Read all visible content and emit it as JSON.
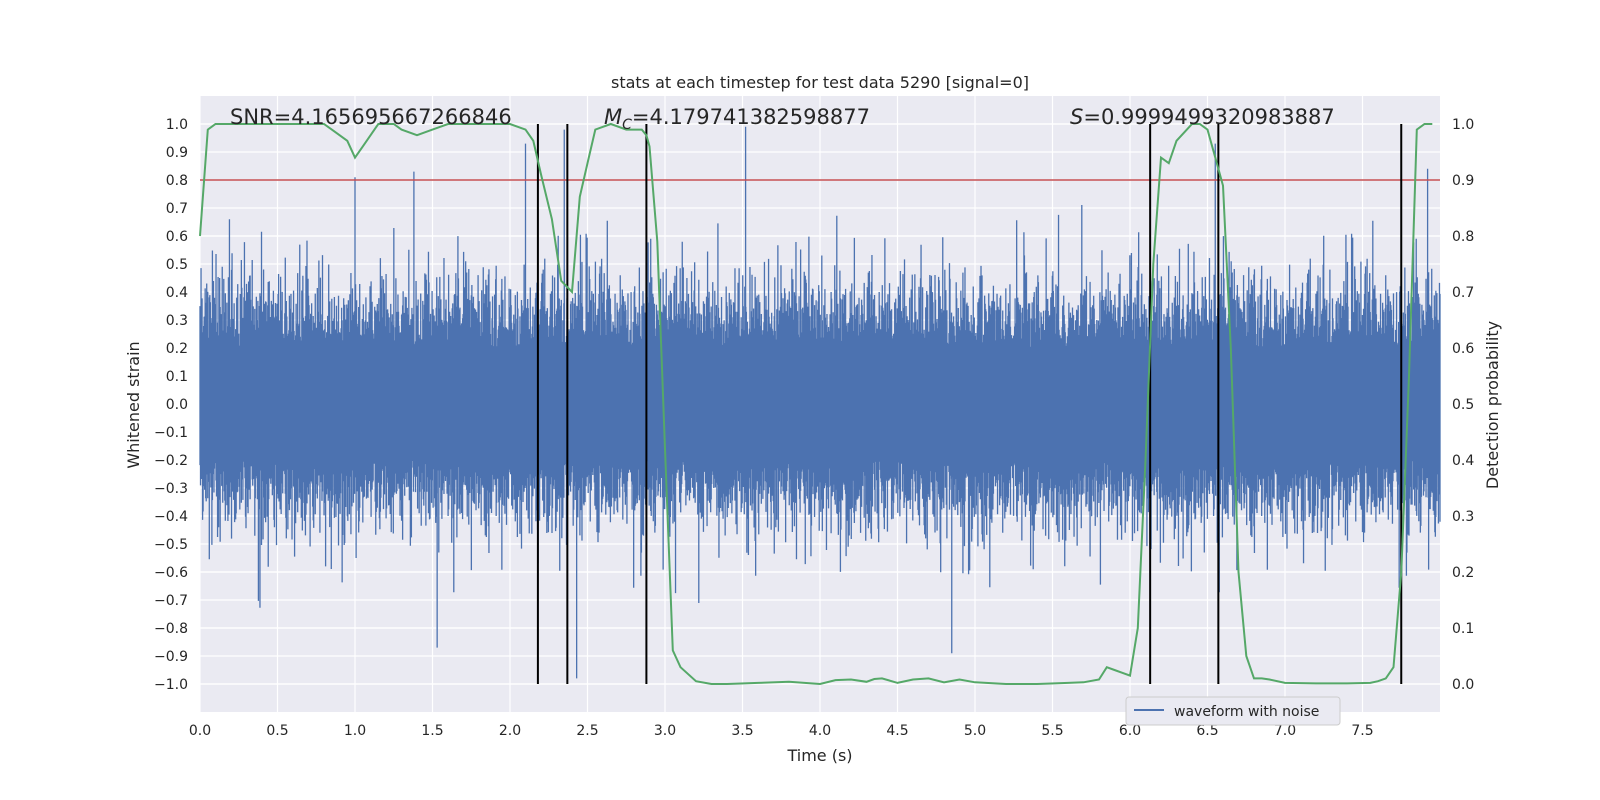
{
  "chart_data": {
    "type": "line",
    "title": "stats at each timestep for test data 5290 [signal=0]",
    "xlabel": "Time (s)",
    "ylabel": "Whitened strain",
    "y2label": "Detection probability",
    "xlim": [
      0.0,
      8.0
    ],
    "ylim": [
      -1.1,
      1.1
    ],
    "y2lim": [
      -0.05,
      1.05
    ],
    "xticks": [
      "0.0",
      "0.5",
      "1.0",
      "1.5",
      "2.0",
      "2.5",
      "3.0",
      "3.5",
      "4.0",
      "4.5",
      "5.0",
      "5.5",
      "6.0",
      "6.5",
      "7.0",
      "7.5"
    ],
    "xtick_values": [
      0.0,
      0.5,
      1.0,
      1.5,
      2.0,
      2.5,
      3.0,
      3.5,
      4.0,
      4.5,
      5.0,
      5.5,
      6.0,
      6.5,
      7.0,
      7.5
    ],
    "yticks": [
      "1.0",
      "0.9",
      "0.8",
      "0.7",
      "0.6",
      "0.5",
      "0.4",
      "0.3",
      "0.2",
      "0.1",
      "0.0",
      "−0.1",
      "−0.2",
      "−0.3",
      "−0.4",
      "−0.5",
      "−0.6",
      "−0.7",
      "−0.8",
      "−0.9",
      "−1.0"
    ],
    "ytick_values": [
      1.0,
      0.9,
      0.8,
      0.7,
      0.6,
      0.5,
      0.4,
      0.3,
      0.2,
      0.1,
      0.0,
      -0.1,
      -0.2,
      -0.3,
      -0.4,
      -0.5,
      -0.6,
      -0.7,
      -0.8,
      -0.9,
      -1.0
    ],
    "y2ticks": [
      "1.0",
      "0.9",
      "0.8",
      "0.7",
      "0.6",
      "0.5",
      "0.4",
      "0.3",
      "0.2",
      "0.1",
      "0.0"
    ],
    "y2tick_values": [
      1.0,
      0.9,
      0.8,
      0.7,
      0.6,
      0.5,
      0.4,
      0.3,
      0.2,
      0.1,
      0.0
    ],
    "annotations": {
      "snr": "SNR=4.165695667266846",
      "mc_symbol": "M",
      "mc_sub": "C",
      "mc_value": "=4.179741382598877",
      "s_symbol": "S",
      "s_value": "=0.9999499320983887"
    },
    "legend": {
      "label": "waveform with noise",
      "location": "lower-right"
    },
    "threshold": {
      "value": 0.9,
      "axis": "y2",
      "color": "#c44e52"
    },
    "vertical_lines": [
      2.18,
      2.37,
      2.88,
      6.13,
      6.57,
      7.75
    ],
    "series": [
      {
        "name": "waveform with noise",
        "color": "#4c72b0",
        "envelope_note": "dense noise series; typical amplitude ±0.4, spikes to about ±0.8",
        "peaks": [
          {
            "x": 0.19,
            "y": 0.66
          },
          {
            "x": 1.0,
            "y": 0.81
          },
          {
            "x": 1.38,
            "y": 0.83
          },
          {
            "x": 2.1,
            "y": 0.93
          },
          {
            "x": 2.35,
            "y": 0.98
          },
          {
            "x": 2.88,
            "y": -0.82
          },
          {
            "x": 3.52,
            "y": 0.99
          },
          {
            "x": 1.53,
            "y": -0.87
          },
          {
            "x": 4.85,
            "y": -0.89
          },
          {
            "x": 6.55,
            "y": 0.93
          },
          {
            "x": 7.92,
            "y": 0.84
          },
          {
            "x": 2.43,
            "y": -0.98
          }
        ]
      },
      {
        "name": "detection probability",
        "axis": "y2",
        "color": "#55a868",
        "x": [
          0.0,
          0.05,
          0.1,
          0.2,
          0.4,
          0.6,
          0.8,
          0.85,
          0.95,
          1.0,
          1.05,
          1.15,
          1.25,
          1.3,
          1.4,
          1.5,
          1.6,
          1.8,
          2.0,
          2.1,
          2.15,
          2.2,
          2.27,
          2.33,
          2.4,
          2.45,
          2.5,
          2.55,
          2.65,
          2.75,
          2.85,
          2.88,
          2.9,
          2.95,
          3.0,
          3.05,
          3.1,
          3.2,
          3.3,
          3.4,
          3.6,
          3.8,
          4.0,
          4.1,
          4.2,
          4.3,
          4.35,
          4.4,
          4.5,
          4.6,
          4.7,
          4.8,
          4.9,
          5.0,
          5.2,
          5.4,
          5.6,
          5.7,
          5.8,
          5.85,
          5.9,
          5.95,
          6.0,
          6.05,
          6.1,
          6.15,
          6.2,
          6.25,
          6.3,
          6.4,
          6.45,
          6.5,
          6.55,
          6.6,
          6.65,
          6.7,
          6.75,
          6.8,
          6.85,
          6.9,
          7.0,
          7.2,
          7.4,
          7.55,
          7.6,
          7.65,
          7.7,
          7.75,
          7.8,
          7.85,
          7.9,
          7.95
        ],
        "values": [
          0.8,
          0.99,
          1.0,
          1.0,
          1.0,
          1.0,
          1.0,
          0.99,
          0.97,
          0.94,
          0.96,
          1.0,
          1.0,
          0.99,
          0.98,
          0.99,
          1.0,
          1.0,
          1.0,
          0.99,
          0.97,
          0.91,
          0.83,
          0.72,
          0.7,
          0.87,
          0.93,
          0.99,
          1.0,
          0.99,
          0.99,
          0.98,
          0.96,
          0.79,
          0.42,
          0.06,
          0.03,
          0.005,
          0.0,
          0.0,
          0.002,
          0.004,
          0.0,
          0.007,
          0.008,
          0.004,
          0.009,
          0.01,
          0.002,
          0.008,
          0.01,
          0.003,
          0.008,
          0.003,
          0.0,
          0.0,
          0.002,
          0.003,
          0.008,
          0.03,
          0.025,
          0.02,
          0.015,
          0.1,
          0.4,
          0.75,
          0.94,
          0.93,
          0.97,
          1.0,
          1.0,
          0.99,
          0.94,
          0.89,
          0.6,
          0.2,
          0.05,
          0.01,
          0.01,
          0.008,
          0.002,
          0.001,
          0.001,
          0.002,
          0.005,
          0.01,
          0.03,
          0.2,
          0.55,
          0.99,
          1.0,
          1.0
        ]
      }
    ]
  }
}
